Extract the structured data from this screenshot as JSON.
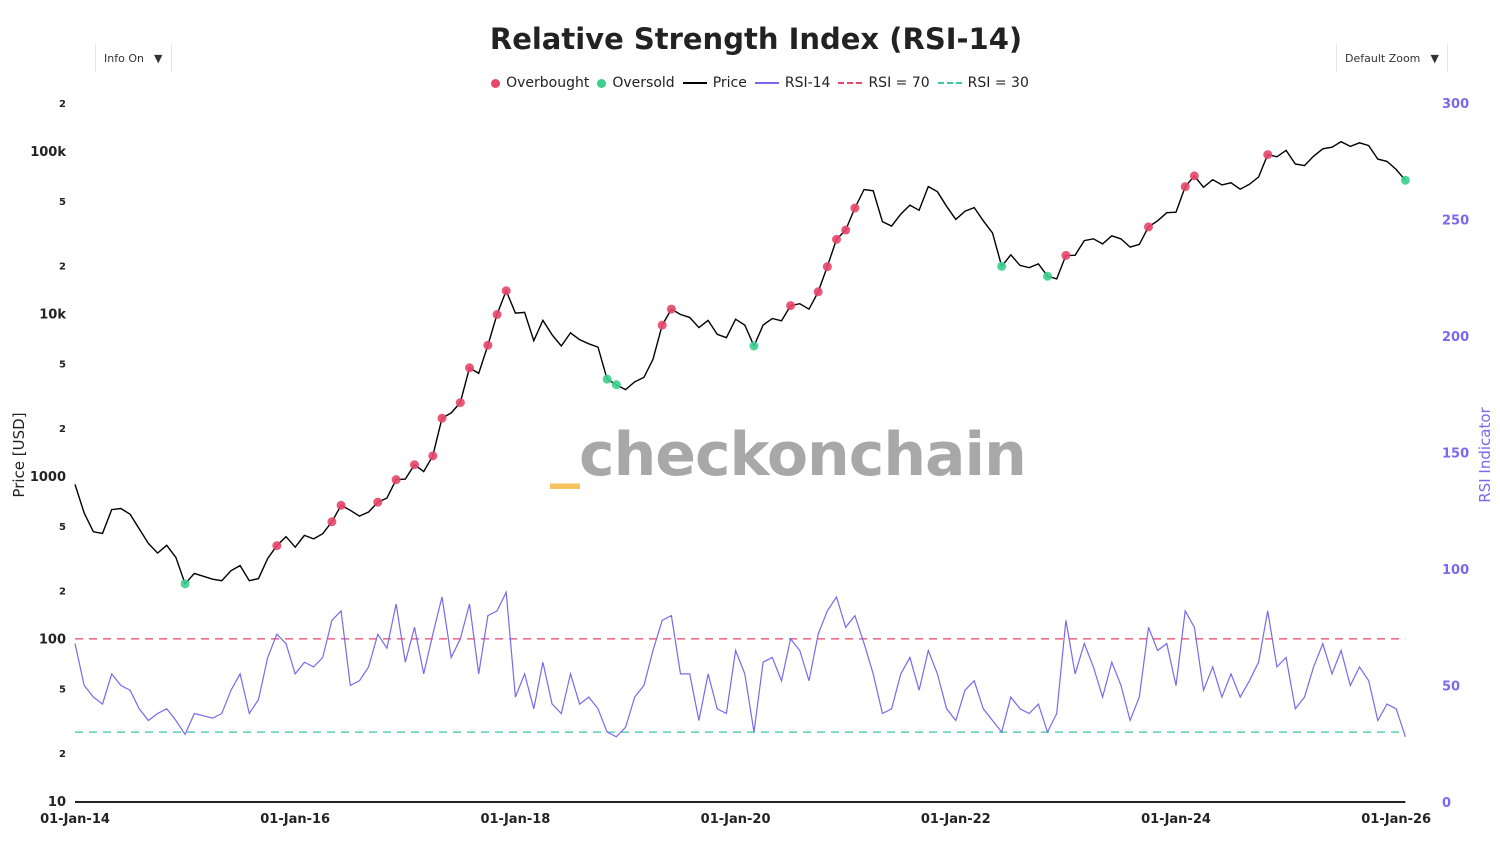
{
  "controls": {
    "info_label": "Info On",
    "zoom_label": "Default Zoom",
    "caret": "▼"
  },
  "watermark": {
    "prefix": "_",
    "text": "checkonchain"
  },
  "colors": {
    "overbought": "#e8466a",
    "oversold": "#3ccf8e",
    "price": "#000000",
    "rsi": "#7b68ee",
    "rsi70": "#e8466a",
    "rsi30": "#3cc6a8",
    "right_axis": "#7b68ee"
  },
  "chart_data": {
    "type": "line",
    "title": "Relative Strength Index (RSI-14)",
    "legend": [
      {
        "name": "Overbought",
        "kind": "dot",
        "color": "#e8466a"
      },
      {
        "name": "Oversold",
        "kind": "dot",
        "color": "#3ccf8e"
      },
      {
        "name": "Price",
        "kind": "line",
        "color": "#000000"
      },
      {
        "name": "RSI-14",
        "kind": "line",
        "color": "#7b68ee"
      },
      {
        "name": "RSI = 70",
        "kind": "dash",
        "color": "#e8466a"
      },
      {
        "name": "RSI = 30",
        "kind": "dash",
        "color": "#3cc6a8"
      }
    ],
    "legend_position": "top-center",
    "ylabel": "Price [USD]",
    "y2label": "RSI Indicator",
    "yscale": "log",
    "ylim": [
      10,
      250000
    ],
    "y2lim": [
      0,
      300
    ],
    "grid": false,
    "x_ticks": [
      "01-Jan-14",
      "01-Jan-16",
      "01-Jan-18",
      "01-Jan-20",
      "01-Jan-22",
      "01-Jan-24",
      "01-Jan-26"
    ],
    "x_tick_years": [
      2014,
      2016,
      2018,
      2020,
      2022,
      2024,
      2026
    ],
    "y_ticks": [
      {
        "v": 10,
        "l": "10"
      },
      {
        "v": 20,
        "l": "2"
      },
      {
        "v": 50,
        "l": "5"
      },
      {
        "v": 100,
        "l": "100"
      },
      {
        "v": 200,
        "l": "2"
      },
      {
        "v": 500,
        "l": "5"
      },
      {
        "v": 1000,
        "l": "1000"
      },
      {
        "v": 2000,
        "l": "2"
      },
      {
        "v": 5000,
        "l": "5"
      },
      {
        "v": 10000,
        "l": "10k"
      },
      {
        "v": 20000,
        "l": "2"
      },
      {
        "v": 50000,
        "l": "5"
      },
      {
        "v": 100000,
        "l": "100k"
      },
      {
        "v": 200000,
        "l": "2"
      }
    ],
    "y2_ticks": [
      0,
      50,
      100,
      150,
      200,
      250,
      300
    ],
    "thresholds": {
      "overbought": 70,
      "oversold": 30
    },
    "start": "2014-01",
    "price": [
      900,
      600,
      460,
      450,
      630,
      640,
      590,
      480,
      390,
      340,
      380,
      320,
      220,
      255,
      245,
      235,
      230,
      265,
      285,
      230,
      237,
      315,
      378,
      430,
      370,
      437,
      416,
      448,
      530,
      670,
      624,
      575,
      609,
      700,
      742,
      963,
      970,
      1190,
      1080,
      1350,
      2300,
      2480,
      2870,
      4700,
      4340,
      6470,
      10000,
      14000,
      10200,
      10300,
      6900,
      9200,
      7500,
      6400,
      7700,
      7000,
      6600,
      6300,
      4000,
      3700,
      3450,
      3850,
      4100,
      5300,
      8600,
      10800,
      10000,
      9600,
      8300,
      9200,
      7550,
      7200,
      9350,
      8600,
      6400,
      8600,
      9450,
      9140,
      11350,
      11650,
      10780,
      13800,
      19700,
      29000,
      33100,
      45200,
      58800,
      57700,
      37300,
      35000,
      41500,
      47100,
      43800,
      61300,
      57000,
      46300,
      38500,
      43200,
      45500,
      37700,
      31800,
      19800,
      23300,
      20050,
      19400,
      20500,
      17200,
      16550,
      23100,
      23150,
      28500,
      29250,
      27200,
      30500,
      29200,
      26000,
      27000,
      34600,
      37700,
      42300,
      42600,
      61200,
      71300,
      60600,
      67500,
      62700,
      64600,
      59000,
      63300,
      70200,
      96400,
      93400,
      102400,
      84400,
      82500,
      94200,
      104600,
      107100,
      115700,
      108200,
      114000,
      109500,
      90400,
      87500,
      78000,
      67000
    ],
    "rsi": [
      68,
      50,
      45,
      42,
      55,
      50,
      48,
      40,
      35,
      38,
      40,
      35,
      29,
      38,
      37,
      36,
      38,
      48,
      55,
      38,
      44,
      62,
      72,
      68,
      55,
      60,
      58,
      62,
      78,
      82,
      50,
      52,
      58,
      72,
      66,
      85,
      60,
      75,
      55,
      72,
      88,
      62,
      70,
      85,
      55,
      80,
      82,
      90,
      45,
      55,
      40,
      60,
      42,
      38,
      55,
      42,
      45,
      40,
      30,
      28,
      32,
      45,
      50,
      65,
      78,
      80,
      55,
      55,
      35,
      55,
      40,
      38,
      65,
      55,
      30,
      60,
      62,
      52,
      70,
      65,
      52,
      72,
      82,
      88,
      75,
      80,
      68,
      55,
      38,
      40,
      55,
      62,
      48,
      65,
      55,
      40,
      35,
      48,
      52,
      40,
      35,
      30,
      45,
      40,
      38,
      42,
      30,
      38,
      78,
      55,
      68,
      58,
      45,
      60,
      50,
      35,
      45,
      75,
      65,
      68,
      50,
      82,
      75,
      48,
      58,
      45,
      55,
      45,
      52,
      60,
      82,
      58,
      62,
      40,
      45,
      58,
      68,
      55,
      65,
      50,
      58,
      52,
      35,
      42,
      40,
      28
    ]
  }
}
